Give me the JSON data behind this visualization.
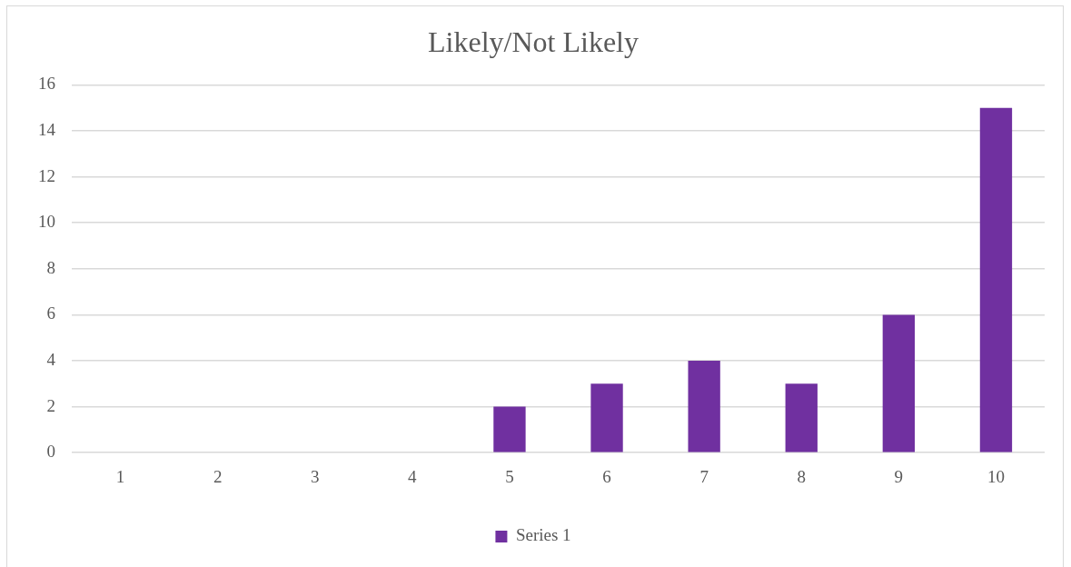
{
  "chart_data": {
    "type": "bar",
    "title": "Likely/Not Likely",
    "categories": [
      "1",
      "2",
      "3",
      "4",
      "5",
      "6",
      "7",
      "8",
      "9",
      "10"
    ],
    "series": [
      {
        "name": "Series 1",
        "color": "#7030a0",
        "values": [
          0,
          0,
          0,
          0,
          2,
          3,
          4,
          3,
          6,
          15
        ]
      }
    ],
    "ylim": [
      0,
      16
    ],
    "yticks": [
      0,
      2,
      4,
      6,
      8,
      10,
      12,
      14,
      16
    ],
    "grid": "y",
    "legend": "bottom"
  }
}
